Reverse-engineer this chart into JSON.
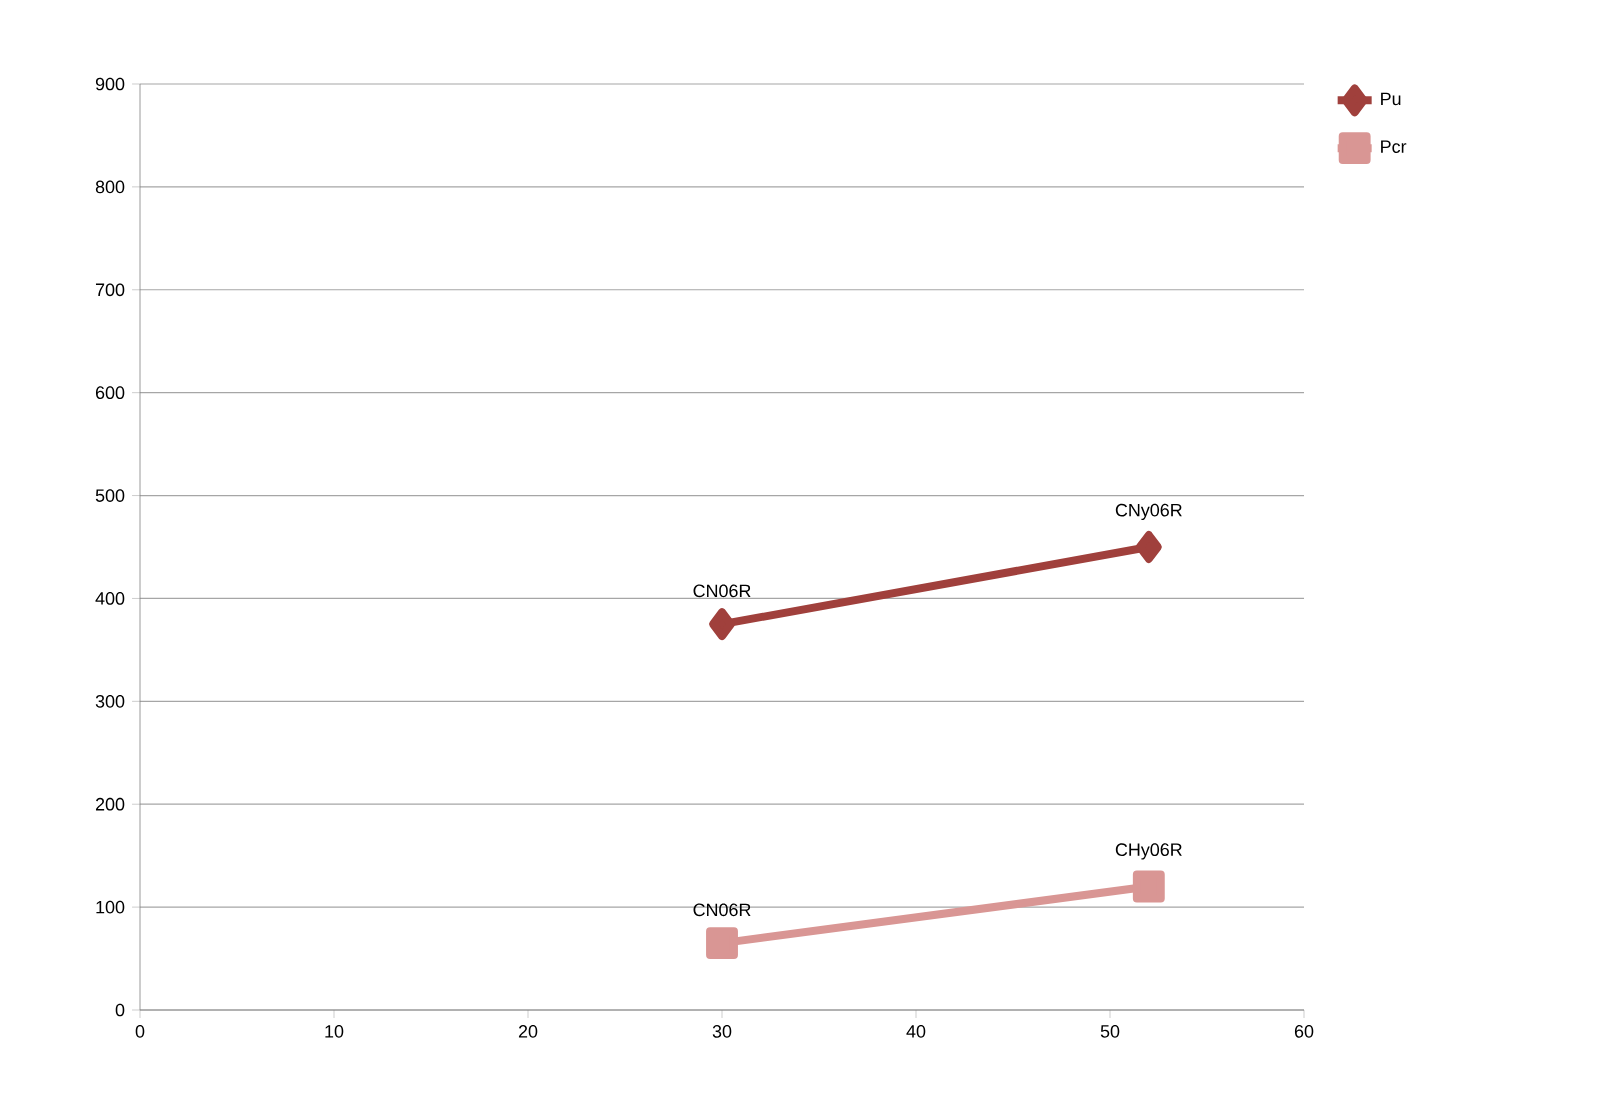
{
  "chart_data": {
    "type": "line",
    "x": [
      30,
      52
    ],
    "series": [
      {
        "name": "Pu",
        "color": "#a0403c",
        "marker": "diamond",
        "values": [
          375,
          450
        ],
        "value_labels": [
          "CN06R",
          "CNy06R"
        ]
      },
      {
        "name": "Pcr",
        "color": "#d99694",
        "marker": "square",
        "values": [
          65,
          120
        ],
        "value_labels": [
          "CN06R",
          "CHy06R"
        ]
      }
    ],
    "xlim": [
      0,
      60
    ],
    "xticks": [
      0,
      10,
      20,
      30,
      40,
      50,
      60
    ],
    "ylim": [
      0,
      900
    ],
    "yticks": [
      0,
      100,
      200,
      300,
      400,
      500,
      600,
      700,
      800,
      900
    ],
    "grid": "y",
    "legend": "top right"
  }
}
